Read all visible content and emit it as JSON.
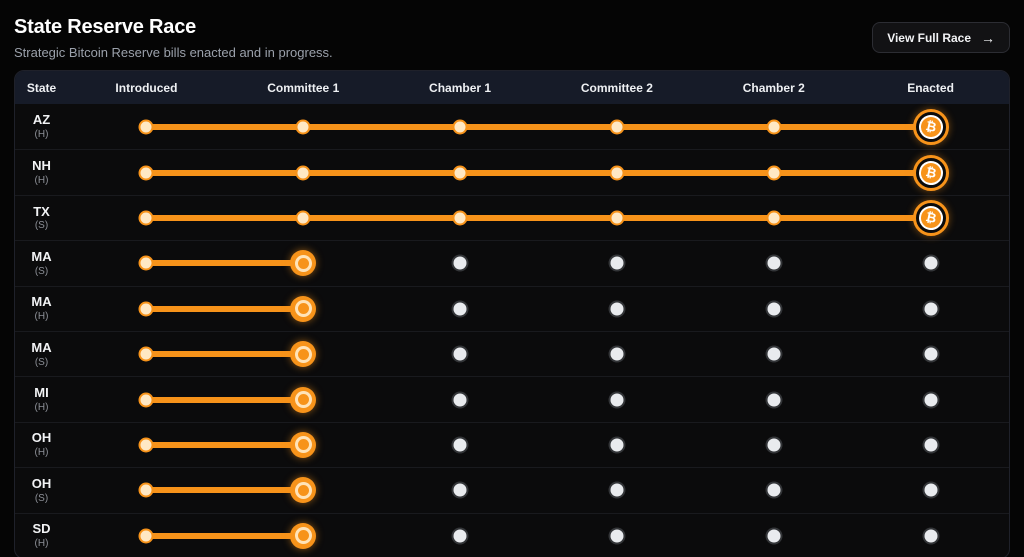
{
  "header": {
    "title": "State Reserve Race",
    "subtitle": "Strategic Bitcoin Reserve bills enacted and in progress.",
    "button_label": "View Full Race",
    "button_arrow": "→"
  },
  "table": {
    "columns": [
      "State",
      "Introduced",
      "Committee 1",
      "Chamber 1",
      "Committee 2",
      "Chamber 2",
      "Enacted"
    ],
    "stages": [
      "Introduced",
      "Committee 1",
      "Chamber 1",
      "Committee 2",
      "Chamber 2",
      "Enacted"
    ],
    "bitcoin_symbol": "₿",
    "rows": [
      {
        "state": "AZ",
        "chamber": "(H)",
        "status": "Enacted",
        "progress_index": 5
      },
      {
        "state": "NH",
        "chamber": "(H)",
        "status": "Enacted",
        "progress_index": 5
      },
      {
        "state": "TX",
        "chamber": "(S)",
        "status": "Enacted",
        "progress_index": 5
      },
      {
        "state": "MA",
        "chamber": "(S)",
        "status": "Committee 1",
        "progress_index": 1
      },
      {
        "state": "MA",
        "chamber": "(H)",
        "status": "Committee 1",
        "progress_index": 1
      },
      {
        "state": "MA",
        "chamber": "(S)",
        "status": "Committee 1",
        "progress_index": 1
      },
      {
        "state": "MI",
        "chamber": "(H)",
        "status": "Committee 1",
        "progress_index": 1
      },
      {
        "state": "OH",
        "chamber": "(H)",
        "status": "Committee 1",
        "progress_index": 1
      },
      {
        "state": "OH",
        "chamber": "(S)",
        "status": "Committee 1",
        "progress_index": 1
      },
      {
        "state": "SD",
        "chamber": "(H)",
        "status": "Committee 1",
        "progress_index": 1
      }
    ]
  },
  "colors": {
    "accent_orange": "#F7931A",
    "dot_done": "#FFE8C4",
    "dot_pending": "#E9EBEE",
    "header_bg": "#161B28",
    "card_bg": "#0B0B0C",
    "page_bg": "#050505"
  }
}
